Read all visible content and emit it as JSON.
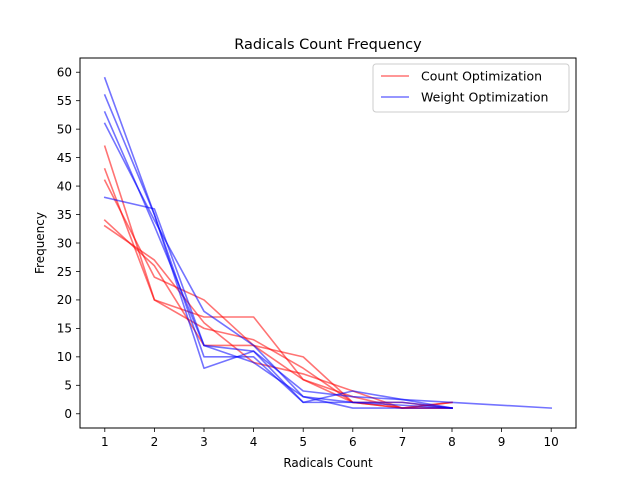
{
  "chart_data": {
    "type": "line",
    "title": "Radicals Count Frequency",
    "xlabel": "Radicals Count",
    "ylabel": "Frequency",
    "xlim": [
      0.5,
      10.5
    ],
    "ylim": [
      -2.5,
      62.5
    ],
    "xticks": [
      1,
      2,
      3,
      4,
      5,
      6,
      7,
      8,
      9,
      10
    ],
    "yticks": [
      0,
      5,
      10,
      15,
      20,
      25,
      30,
      35,
      40,
      45,
      50,
      55,
      60
    ],
    "grid": false,
    "legend_position": "top-right",
    "legend": [
      {
        "label": "Count Optimization",
        "color": "#ff0000"
      },
      {
        "label": "Weight Optimization",
        "color": "#0000ff"
      }
    ],
    "series": [
      {
        "group": "Count Optimization",
        "color": "#ff0000",
        "x": [
          1,
          2,
          3,
          4,
          5,
          6,
          7,
          8
        ],
        "y": [
          47,
          20,
          17,
          17,
          6,
          3,
          1,
          1
        ]
      },
      {
        "group": "Count Optimization",
        "color": "#ff0000",
        "x": [
          1,
          2,
          3,
          4,
          5,
          6,
          7,
          8
        ],
        "y": [
          43,
          20,
          15,
          13,
          8,
          2,
          1,
          2
        ]
      },
      {
        "group": "Count Optimization",
        "color": "#ff0000",
        "x": [
          1,
          2,
          3,
          4,
          5,
          6,
          7,
          8
        ],
        "y": [
          41,
          24,
          20,
          12,
          6,
          2,
          2,
          1
        ]
      },
      {
        "group": "Count Optimization",
        "color": "#ff0000",
        "x": [
          1,
          2,
          3,
          4,
          5,
          6,
          7,
          8
        ],
        "y": [
          34,
          26,
          12,
          12,
          10,
          2,
          1,
          2
        ]
      },
      {
        "group": "Count Optimization",
        "color": "#ff0000",
        "x": [
          1,
          2,
          3,
          4,
          5,
          6,
          7,
          8
        ],
        "y": [
          33,
          27,
          16,
          9,
          7,
          4,
          1,
          1
        ]
      },
      {
        "group": "Weight Optimization",
        "color": "#0000ff",
        "x": [
          1,
          2,
          3,
          4,
          5,
          6,
          7,
          8
        ],
        "y": [
          59,
          35,
          10,
          10,
          2,
          2,
          2,
          1
        ]
      },
      {
        "group": "Weight Optimization",
        "color": "#0000ff",
        "x": [
          1,
          2,
          3,
          4,
          5,
          6,
          10
        ],
        "y": [
          56,
          35,
          8,
          11,
          4,
          3,
          1
        ]
      },
      {
        "group": "Weight Optimization",
        "color": "#0000ff",
        "x": [
          1,
          2,
          3,
          4,
          5,
          6,
          8
        ],
        "y": [
          53,
          33,
          12,
          11,
          2,
          4,
          1
        ]
      },
      {
        "group": "Weight Optimization",
        "color": "#0000ff",
        "x": [
          1,
          2,
          3,
          4,
          5,
          6,
          8
        ],
        "y": [
          51,
          34,
          18,
          12,
          3,
          2,
          1
        ]
      },
      {
        "group": "Weight Optimization",
        "color": "#0000ff",
        "x": [
          1,
          2,
          3,
          4,
          5,
          6,
          8
        ],
        "y": [
          38,
          36,
          12,
          9,
          3,
          1,
          1
        ]
      }
    ]
  }
}
